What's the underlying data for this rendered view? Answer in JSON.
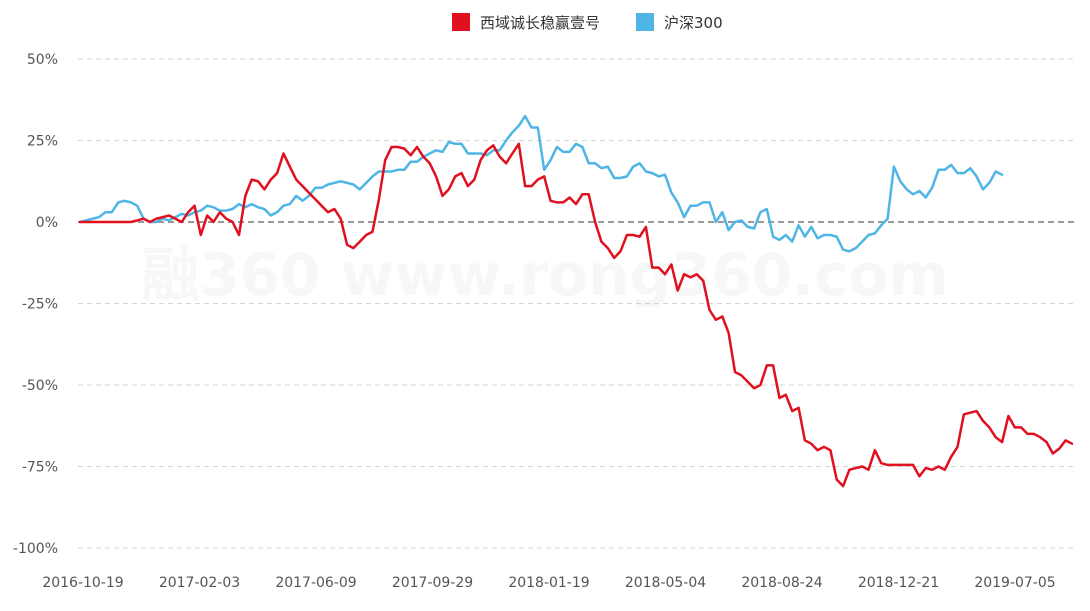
{
  "chart_data": {
    "type": "line",
    "title": "",
    "xlabel": "",
    "ylabel": "",
    "ylim": [
      -100,
      50
    ],
    "y_ticks": [
      50,
      25,
      0,
      -25,
      -50,
      -75,
      -100
    ],
    "y_tick_labels": [
      "50%",
      "25%",
      "0%",
      "-25%",
      "-50%",
      "-75%",
      "-100%"
    ],
    "x_tick_labels": [
      "2016-10-19",
      "2017-02-03",
      "2017-06-09",
      "2017-09-29",
      "2018-01-19",
      "2018-05-04",
      "2018-08-24",
      "2018-12-21",
      "2019-07-05"
    ],
    "grid": true,
    "legend_position": "top-center",
    "watermark": "融360 www.rong360.com",
    "series": [
      {
        "name": "西域诚长稳赢壹号",
        "color": "#e0101f",
        "points": [
          [
            0,
            0
          ],
          [
            2,
            0
          ],
          [
            4,
            0
          ],
          [
            5,
            0
          ],
          [
            6,
            0
          ],
          [
            8,
            0
          ],
          [
            9,
            0.5
          ],
          [
            10,
            1
          ],
          [
            11,
            0
          ],
          [
            12,
            1
          ],
          [
            13,
            1.5
          ],
          [
            14,
            2
          ],
          [
            15,
            1
          ],
          [
            16,
            0
          ],
          [
            17,
            3
          ],
          [
            18,
            5
          ],
          [
            19,
            -4
          ],
          [
            20,
            2
          ],
          [
            21,
            0
          ],
          [
            22,
            3
          ],
          [
            23,
            1
          ],
          [
            24,
            0
          ],
          [
            25,
            -4
          ],
          [
            26,
            8
          ],
          [
            27,
            13
          ],
          [
            28,
            12.5
          ],
          [
            29,
            10
          ],
          [
            30,
            13
          ],
          [
            31,
            15
          ],
          [
            32,
            21
          ],
          [
            33,
            17
          ],
          [
            34,
            13
          ],
          [
            35,
            11
          ],
          [
            36,
            9
          ],
          [
            37,
            7
          ],
          [
            38,
            5
          ],
          [
            39,
            3
          ],
          [
            40,
            4
          ],
          [
            41,
            1
          ],
          [
            42,
            -7
          ],
          [
            43,
            -8
          ],
          [
            44,
            -6
          ],
          [
            45,
            -4
          ],
          [
            46,
            -3
          ],
          [
            47,
            7
          ],
          [
            48,
            19
          ],
          [
            49,
            23
          ],
          [
            50,
            23
          ],
          [
            51,
            22.5
          ],
          [
            52,
            20.5
          ],
          [
            53,
            23
          ],
          [
            54,
            20
          ],
          [
            55,
            18
          ],
          [
            56,
            14
          ],
          [
            57,
            8
          ],
          [
            58,
            10
          ],
          [
            59,
            14
          ],
          [
            60,
            15
          ],
          [
            61,
            11
          ],
          [
            62,
            13
          ],
          [
            63,
            19
          ],
          [
            64,
            22
          ],
          [
            65,
            23.5
          ],
          [
            66,
            20
          ],
          [
            67,
            18
          ],
          [
            68,
            21
          ],
          [
            69,
            24
          ],
          [
            70,
            11
          ],
          [
            71,
            11
          ],
          [
            72,
            13
          ],
          [
            73,
            14
          ],
          [
            74,
            6.5
          ],
          [
            75,
            6
          ],
          [
            76,
            6
          ],
          [
            77,
            7.5
          ],
          [
            78,
            5.5
          ],
          [
            79,
            8.5
          ],
          [
            80,
            8.5
          ],
          [
            81,
            0
          ],
          [
            82,
            -6
          ],
          [
            83,
            -8
          ],
          [
            84,
            -11
          ],
          [
            85,
            -9
          ],
          [
            86,
            -4
          ],
          [
            87,
            -4
          ],
          [
            88,
            -4.5
          ],
          [
            89,
            -1.5
          ],
          [
            90,
            -14
          ],
          [
            91,
            -14
          ],
          [
            92,
            -16
          ],
          [
            93,
            -13
          ],
          [
            94,
            -21
          ],
          [
            95,
            -16
          ],
          [
            96,
            -17
          ],
          [
            97,
            -16
          ],
          [
            98,
            -18
          ],
          [
            99,
            -27
          ],
          [
            100,
            -30
          ],
          [
            101,
            -29
          ],
          [
            102,
            -34
          ],
          [
            103,
            -46
          ],
          [
            104,
            -47
          ],
          [
            105,
            -49
          ],
          [
            106,
            -51
          ],
          [
            107,
            -50
          ],
          [
            108,
            -44
          ],
          [
            109,
            -44
          ],
          [
            110,
            -54
          ],
          [
            111,
            -53
          ],
          [
            112,
            -58
          ],
          [
            113,
            -57
          ],
          [
            114,
            -67
          ],
          [
            115,
            -68
          ],
          [
            116,
            -70
          ],
          [
            117,
            -69
          ],
          [
            118,
            -70
          ],
          [
            119,
            -79
          ],
          [
            120,
            -81
          ],
          [
            121,
            -76
          ],
          [
            122,
            -75.5
          ],
          [
            123,
            -75
          ],
          [
            124,
            -76
          ],
          [
            125,
            -70
          ],
          [
            126,
            -74
          ],
          [
            127,
            -74.5
          ],
          [
            128,
            -74.5
          ],
          [
            129,
            -74.5
          ],
          [
            130,
            -74.5
          ],
          [
            131,
            -74.5
          ],
          [
            132,
            -78
          ],
          [
            133,
            -75.5
          ],
          [
            134,
            -76
          ],
          [
            135,
            -75
          ],
          [
            136,
            -76
          ],
          [
            137,
            -72
          ],
          [
            138,
            -69
          ],
          [
            139,
            -59
          ],
          [
            140,
            -58.5
          ],
          [
            141,
            -58
          ],
          [
            142,
            -61
          ],
          [
            143,
            -63
          ],
          [
            144,
            -66
          ],
          [
            145,
            -67.5
          ],
          [
            146,
            -59.5
          ],
          [
            147,
            -63
          ],
          [
            148,
            -63
          ],
          [
            149,
            -65
          ],
          [
            150,
            -65
          ],
          [
            151,
            -66
          ],
          [
            152,
            -67.5
          ],
          [
            153,
            -71
          ],
          [
            154,
            -69.5
          ],
          [
            155,
            -67
          ],
          [
            156,
            -68
          ]
        ]
      },
      {
        "name": "沪深300",
        "color": "#4fb5e6",
        "points": [
          [
            0,
            0
          ],
          [
            1,
            0.5
          ],
          [
            2,
            1
          ],
          [
            3,
            1.5
          ],
          [
            4,
            3
          ],
          [
            5,
            3
          ],
          [
            6,
            6
          ],
          [
            7,
            6.5
          ],
          [
            8,
            6
          ],
          [
            9,
            5
          ],
          [
            10,
            1
          ],
          [
            11,
            0
          ],
          [
            12,
            0
          ],
          [
            13,
            1
          ],
          [
            14,
            0.5
          ],
          [
            15,
            1.5
          ],
          [
            16,
            2.5
          ],
          [
            17,
            2
          ],
          [
            18,
            3
          ],
          [
            19,
            3.5
          ],
          [
            20,
            5
          ],
          [
            21,
            4.5
          ],
          [
            22,
            3.5
          ],
          [
            23,
            3.5
          ],
          [
            24,
            4
          ],
          [
            25,
            5.5
          ],
          [
            26,
            4.5
          ],
          [
            27,
            5.5
          ],
          [
            28,
            4.5
          ],
          [
            29,
            4
          ],
          [
            30,
            2
          ],
          [
            31,
            3
          ],
          [
            32,
            5
          ],
          [
            33,
            5.5
          ],
          [
            34,
            8
          ],
          [
            35,
            6.5
          ],
          [
            36,
            8
          ],
          [
            37,
            10.5
          ],
          [
            38,
            10.5
          ],
          [
            39,
            11.5
          ],
          [
            40,
            12
          ],
          [
            41,
            12.5
          ],
          [
            42,
            12
          ],
          [
            43,
            11.5
          ],
          [
            44,
            10
          ],
          [
            45,
            12
          ],
          [
            46,
            14
          ],
          [
            47,
            15.5
          ],
          [
            48,
            15.5
          ],
          [
            49,
            15.5
          ],
          [
            50,
            16
          ],
          [
            51,
            16
          ],
          [
            52,
            18.5
          ],
          [
            53,
            18.5
          ],
          [
            54,
            20
          ],
          [
            55,
            21
          ],
          [
            56,
            22
          ],
          [
            57,
            21.5
          ],
          [
            58,
            24.5
          ],
          [
            59,
            24
          ],
          [
            60,
            24
          ],
          [
            61,
            21
          ],
          [
            62,
            21
          ],
          [
            63,
            21
          ],
          [
            64,
            20.5
          ],
          [
            65,
            22
          ],
          [
            66,
            22
          ],
          [
            67,
            25
          ],
          [
            68,
            27.5
          ],
          [
            69,
            29.5
          ],
          [
            70,
            32.5
          ],
          [
            71,
            29
          ],
          [
            72,
            29
          ],
          [
            73,
            16
          ],
          [
            74,
            19
          ],
          [
            75,
            23
          ],
          [
            76,
            21.5
          ],
          [
            77,
            21.5
          ],
          [
            78,
            24
          ],
          [
            79,
            23
          ],
          [
            80,
            18
          ],
          [
            81,
            18
          ],
          [
            82,
            16.5
          ],
          [
            83,
            17
          ],
          [
            84,
            13.5
          ],
          [
            85,
            13.5
          ],
          [
            86,
            14
          ],
          [
            87,
            17
          ],
          [
            88,
            18
          ],
          [
            89,
            15.5
          ],
          [
            90,
            15
          ],
          [
            91,
            14
          ],
          [
            92,
            14.5
          ],
          [
            93,
            9
          ],
          [
            94,
            6
          ],
          [
            95,
            1.5
          ],
          [
            96,
            5
          ],
          [
            97,
            5
          ],
          [
            98,
            6
          ],
          [
            99,
            6
          ],
          [
            100,
            0
          ],
          [
            101,
            3
          ],
          [
            102,
            -2.5
          ],
          [
            103,
            0
          ],
          [
            104,
            0.5
          ],
          [
            105,
            -1.5
          ],
          [
            106,
            -2
          ],
          [
            107,
            3
          ],
          [
            108,
            4
          ],
          [
            109,
            -4.5
          ],
          [
            110,
            -5.5
          ],
          [
            111,
            -4
          ],
          [
            112,
            -6
          ],
          [
            113,
            -1
          ],
          [
            114,
            -4.5
          ],
          [
            115,
            -1.5
          ],
          [
            116,
            -5
          ],
          [
            117,
            -4
          ],
          [
            118,
            -4
          ],
          [
            119,
            -4.5
          ],
          [
            120,
            -8.5
          ],
          [
            121,
            -9
          ],
          [
            122,
            -8
          ],
          [
            123,
            -6
          ],
          [
            124,
            -4
          ],
          [
            125,
            -3.5
          ],
          [
            126,
            -1
          ],
          [
            127,
            1
          ],
          [
            128,
            17
          ],
          [
            129,
            12.5
          ],
          [
            130,
            10
          ],
          [
            131,
            8.5
          ],
          [
            132,
            9.5
          ],
          [
            133,
            7.5
          ],
          [
            134,
            10.5
          ],
          [
            135,
            16
          ],
          [
            136,
            16
          ],
          [
            137,
            17.5
          ],
          [
            138,
            15
          ],
          [
            139,
            15
          ],
          [
            140,
            16.5
          ],
          [
            141,
            14
          ],
          [
            142,
            10
          ],
          [
            143,
            12
          ],
          [
            144,
            15.5
          ],
          [
            145,
            14.5
          ]
        ]
      }
    ]
  }
}
